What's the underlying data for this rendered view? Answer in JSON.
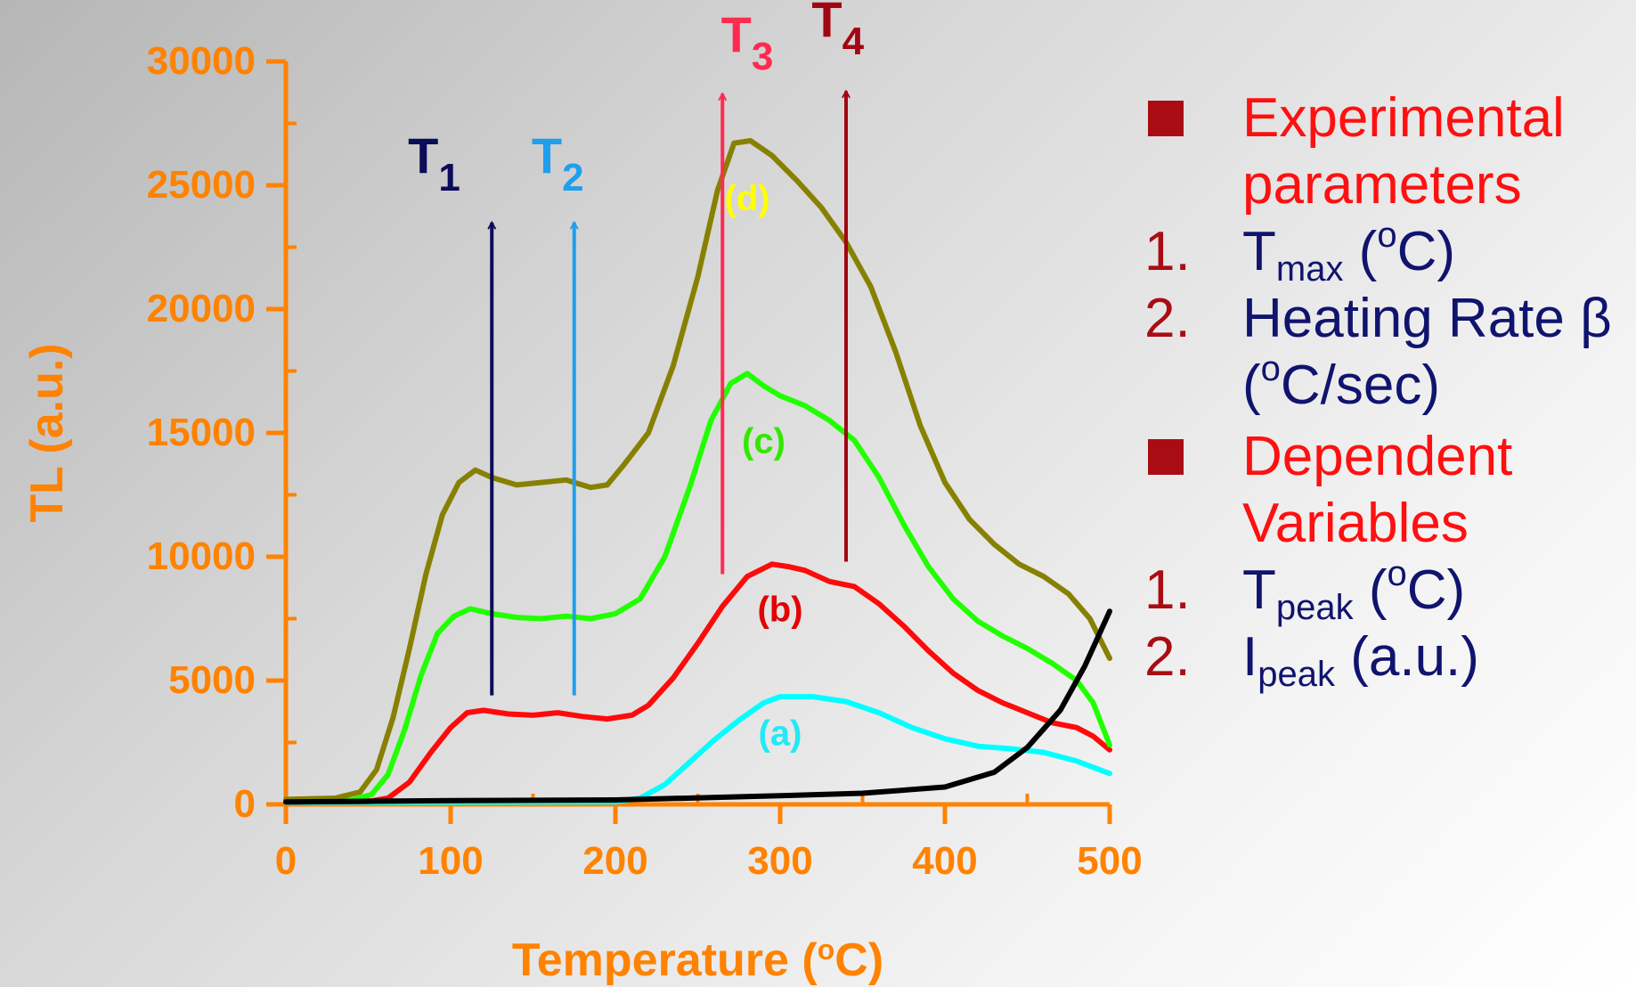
{
  "chart_data": {
    "type": "line",
    "title": "",
    "xlabel": {
      "pre": "Temperature (",
      "sup": "o",
      "post": "C)"
    },
    "ylabel": "TL (a.u.)",
    "xlim": [
      0,
      500
    ],
    "ylim": [
      0,
      30000
    ],
    "x_ticks": [
      0,
      100,
      200,
      300,
      400,
      500
    ],
    "y_ticks": [
      0,
      5000,
      10000,
      15000,
      20000,
      25000,
      30000
    ],
    "grid": false,
    "series": [
      {
        "label": "(a)",
        "color": "#00ffff",
        "label_color": "#24e8f4",
        "label_at": [
          300,
          2900
        ],
        "points": [
          [
            0,
            80
          ],
          [
            200,
            100
          ],
          [
            215,
            250
          ],
          [
            230,
            800
          ],
          [
            245,
            1700
          ],
          [
            260,
            2600
          ],
          [
            275,
            3400
          ],
          [
            290,
            4100
          ],
          [
            300,
            4350
          ],
          [
            320,
            4350
          ],
          [
            340,
            4150
          ],
          [
            360,
            3700
          ],
          [
            380,
            3100
          ],
          [
            400,
            2650
          ],
          [
            420,
            2350
          ],
          [
            440,
            2250
          ],
          [
            460,
            2100
          ],
          [
            480,
            1750
          ],
          [
            500,
            1250
          ]
        ]
      },
      {
        "label": "(b)",
        "color": "#ff0a0a",
        "label_color": "#e20000",
        "label_at": [
          300,
          7900
        ],
        "points": [
          [
            0,
            100
          ],
          [
            50,
            120
          ],
          [
            62,
            250
          ],
          [
            75,
            900
          ],
          [
            88,
            2100
          ],
          [
            100,
            3100
          ],
          [
            110,
            3700
          ],
          [
            120,
            3800
          ],
          [
            135,
            3650
          ],
          [
            150,
            3600
          ],
          [
            165,
            3700
          ],
          [
            180,
            3550
          ],
          [
            195,
            3450
          ],
          [
            210,
            3600
          ],
          [
            220,
            4000
          ],
          [
            235,
            5100
          ],
          [
            250,
            6500
          ],
          [
            265,
            8000
          ],
          [
            280,
            9200
          ],
          [
            295,
            9700
          ],
          [
            305,
            9600
          ],
          [
            315,
            9450
          ],
          [
            330,
            9000
          ],
          [
            345,
            8800
          ],
          [
            360,
            8100
          ],
          [
            375,
            7200
          ],
          [
            390,
            6200
          ],
          [
            405,
            5300
          ],
          [
            420,
            4600
          ],
          [
            435,
            4100
          ],
          [
            450,
            3700
          ],
          [
            465,
            3300
          ],
          [
            480,
            3100
          ],
          [
            490,
            2750
          ],
          [
            500,
            2200
          ]
        ]
      },
      {
        "label": "(c)",
        "color": "#22ff00",
        "label_color": "#33e800",
        "label_at": [
          290,
          14700
        ],
        "points": [
          [
            0,
            150
          ],
          [
            40,
            180
          ],
          [
            52,
            400
          ],
          [
            62,
            1200
          ],
          [
            72,
            3000
          ],
          [
            82,
            5200
          ],
          [
            92,
            6900
          ],
          [
            102,
            7600
          ],
          [
            112,
            7900
          ],
          [
            125,
            7700
          ],
          [
            140,
            7550
          ],
          [
            155,
            7500
          ],
          [
            170,
            7600
          ],
          [
            185,
            7500
          ],
          [
            200,
            7700
          ],
          [
            215,
            8300
          ],
          [
            230,
            10000
          ],
          [
            245,
            12800
          ],
          [
            258,
            15500
          ],
          [
            270,
            17000
          ],
          [
            280,
            17400
          ],
          [
            290,
            16900
          ],
          [
            300,
            16500
          ],
          [
            315,
            16100
          ],
          [
            330,
            15500
          ],
          [
            345,
            14700
          ],
          [
            360,
            13200
          ],
          [
            375,
            11300
          ],
          [
            390,
            9600
          ],
          [
            405,
            8300
          ],
          [
            420,
            7400
          ],
          [
            435,
            6800
          ],
          [
            450,
            6300
          ],
          [
            465,
            5700
          ],
          [
            480,
            5000
          ],
          [
            490,
            4100
          ],
          [
            500,
            2400
          ]
        ]
      },
      {
        "label": "(d)",
        "color": "#878000",
        "label_color": "#ffff00",
        "label_at": [
          280,
          24500
        ],
        "points": [
          [
            0,
            200
          ],
          [
            30,
            250
          ],
          [
            45,
            500
          ],
          [
            55,
            1400
          ],
          [
            65,
            3500
          ],
          [
            75,
            6300
          ],
          [
            85,
            9300
          ],
          [
            95,
            11700
          ],
          [
            105,
            13000
          ],
          [
            115,
            13500
          ],
          [
            125,
            13200
          ],
          [
            140,
            12900
          ],
          [
            155,
            13000
          ],
          [
            170,
            13100
          ],
          [
            185,
            12800
          ],
          [
            195,
            12900
          ],
          [
            205,
            13700
          ],
          [
            220,
            15000
          ],
          [
            235,
            17700
          ],
          [
            250,
            21300
          ],
          [
            262,
            24800
          ],
          [
            272,
            26700
          ],
          [
            282,
            26800
          ],
          [
            295,
            26200
          ],
          [
            310,
            25200
          ],
          [
            325,
            24100
          ],
          [
            340,
            22700
          ],
          [
            355,
            20900
          ],
          [
            370,
            18300
          ],
          [
            385,
            15300
          ],
          [
            400,
            13000
          ],
          [
            415,
            11500
          ],
          [
            430,
            10500
          ],
          [
            445,
            9700
          ],
          [
            460,
            9200
          ],
          [
            475,
            8500
          ],
          [
            488,
            7500
          ],
          [
            500,
            5900
          ]
        ]
      },
      {
        "label": "",
        "color": "#000000",
        "label_color": "",
        "label_at": null,
        "points": [
          [
            0,
            100
          ],
          [
            100,
            150
          ],
          [
            200,
            180
          ],
          [
            300,
            350
          ],
          [
            350,
            450
          ],
          [
            400,
            700
          ],
          [
            430,
            1300
          ],
          [
            450,
            2300
          ],
          [
            470,
            3800
          ],
          [
            485,
            5600
          ],
          [
            500,
            7800
          ]
        ]
      }
    ],
    "markers": [
      {
        "label": "T",
        "sub": "1",
        "x": 125,
        "y_from": 4400,
        "y_to": 23500,
        "color": "#0b0d58",
        "label_at": [
          90,
          25500
        ]
      },
      {
        "label": "T",
        "sub": "2",
        "x": 175,
        "y_from": 4400,
        "y_to": 23500,
        "color": "#1f9fec",
        "label_at": [
          165,
          25500
        ]
      },
      {
        "label": "T",
        "sub": "3",
        "x": 265,
        "y_from": 9300,
        "y_to": 28700,
        "color": "#ff2a50",
        "label_at": [
          280,
          30400
        ]
      },
      {
        "label": "T",
        "sub": "4",
        "x": 340,
        "y_from": 9800,
        "y_to": 28800,
        "color": "#a20612",
        "label_at": [
          335,
          31000
        ]
      }
    ]
  },
  "legend_panel": {
    "sections": [
      {
        "heading": "Experimental parameters",
        "items": [
          {
            "num": "1.",
            "parts": [
              {
                "t": "T"
              },
              {
                "t": "max",
                "sub": true
              },
              {
                "t": " ("
              },
              {
                "t": "o",
                "sup": true
              },
              {
                "t": "C)"
              }
            ]
          },
          {
            "num": "2.",
            "parts": [
              {
                "t": "Heating Rate β ("
              },
              {
                "t": "o",
                "sup": true
              },
              {
                "t": "C/sec)"
              }
            ]
          }
        ]
      },
      {
        "heading": "Dependent Variables",
        "items": [
          {
            "num": "1.",
            "parts": [
              {
                "t": "T"
              },
              {
                "t": "peak",
                "sub": true
              },
              {
                "t": " ("
              },
              {
                "t": "o",
                "sup": true
              },
              {
                "t": "C)"
              }
            ]
          },
          {
            "num": "2.",
            "parts": [
              {
                "t": "I"
              },
              {
                "t": "peak",
                "sub": true
              },
              {
                "t": " (a.u.)"
              }
            ]
          }
        ]
      }
    ],
    "colors": {
      "heading": "#ff1010",
      "number": "#aa0c14",
      "item": "#10146e",
      "bullet": "#aa0c14"
    }
  },
  "axis_color": "#ff8200"
}
